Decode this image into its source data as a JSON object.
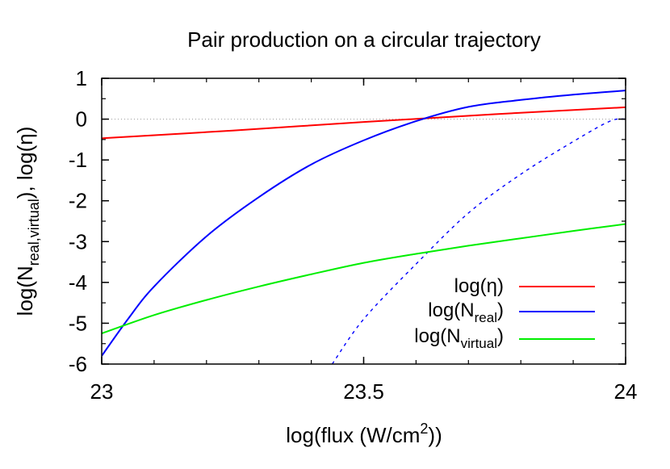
{
  "chart_data": {
    "type": "line",
    "title": "Pair production on a circular trajectory",
    "xlabel": {
      "main": "log(flux (W/cm",
      "sup": "2",
      "tail": "))"
    },
    "ylabel": {
      "a": "log(N",
      "sub": "real,virtual",
      "b": "), log(η)"
    },
    "xlim": [
      23,
      24
    ],
    "ylim": [
      -6,
      1
    ],
    "xticks": [
      {
        "v": 23,
        "label": "23"
      },
      {
        "v": 23.5,
        "label": "23.5"
      },
      {
        "v": 24,
        "label": "24"
      }
    ],
    "yticks": [
      {
        "v": 1,
        "label": "1"
      },
      {
        "v": 0,
        "label": "0"
      },
      {
        "v": -1,
        "label": "-1"
      },
      {
        "v": -2,
        "label": "-2"
      },
      {
        "v": -3,
        "label": "-3"
      },
      {
        "v": -4,
        "label": "-4"
      },
      {
        "v": -5,
        "label": "-5"
      },
      {
        "v": -6,
        "label": "-6"
      }
    ],
    "zero_reference_line": true,
    "legend_position": "bottom-right",
    "series": [
      {
        "key": "eta",
        "legend": {
          "main": "log(η)",
          "sub": ""
        },
        "color": "#ff0000",
        "dash": "solid",
        "x": [
          23.0,
          23.25,
          23.5,
          23.75,
          24.0
        ],
        "y": [
          -0.47,
          -0.28,
          -0.07,
          0.12,
          0.29
        ]
      },
      {
        "key": "n_real",
        "legend": {
          "main": "log(N",
          "sub": "real",
          "tail": ")"
        },
        "color": "#0000ff",
        "dash": "solid",
        "x": [
          23.0,
          23.05,
          23.1,
          23.2,
          23.3,
          23.4,
          23.5,
          23.6,
          23.7,
          23.8,
          23.9,
          24.0
        ],
        "y": [
          -5.8,
          -4.9,
          -4.1,
          -2.87,
          -1.91,
          -1.11,
          -0.52,
          -0.05,
          0.3,
          0.47,
          0.6,
          0.7
        ]
      },
      {
        "key": "n_real_dotted",
        "legend": null,
        "color": "#0000ff",
        "dash": "dotted",
        "x": [
          23.44,
          23.5,
          23.6,
          23.7,
          23.8,
          23.9,
          23.97,
          24.0
        ],
        "y": [
          -6.0,
          -4.9,
          -3.55,
          -2.3,
          -1.35,
          -0.55,
          -0.05,
          0.0
        ]
      },
      {
        "key": "n_virtual",
        "legend": {
          "main": "log(N",
          "sub": "virtual",
          "tail": ")"
        },
        "color": "#00ee00",
        "dash": "solid",
        "x": [
          23.0,
          23.1,
          23.2,
          23.3,
          23.4,
          23.5,
          23.6,
          23.7,
          23.8,
          23.9,
          24.0
        ],
        "y": [
          -5.25,
          -4.8,
          -4.43,
          -4.1,
          -3.8,
          -3.52,
          -3.3,
          -3.1,
          -2.92,
          -2.74,
          -2.57
        ]
      }
    ]
  }
}
